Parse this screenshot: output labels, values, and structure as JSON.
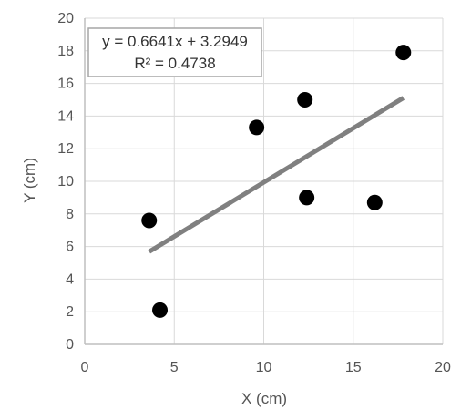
{
  "chart_data": {
    "type": "scatter",
    "title": "",
    "xlabel": "X (cm)",
    "ylabel": "Y (cm)",
    "xlim": [
      0,
      20
    ],
    "ylim": [
      0,
      20
    ],
    "xticks": [
      0,
      5,
      10,
      15,
      20
    ],
    "yticks": [
      0,
      2,
      4,
      6,
      8,
      10,
      12,
      14,
      16,
      18,
      20
    ],
    "grid": true,
    "legend": "none",
    "points": [
      {
        "x": 3.6,
        "y": 7.6
      },
      {
        "x": 4.2,
        "y": 2.1
      },
      {
        "x": 9.6,
        "y": 13.3
      },
      {
        "x": 12.3,
        "y": 15.0
      },
      {
        "x": 12.4,
        "y": 9.0
      },
      {
        "x": 16.2,
        "y": 8.7
      },
      {
        "x": 17.8,
        "y": 17.9
      }
    ],
    "trendline": {
      "slope": 0.6641,
      "intercept": 3.2949,
      "x_range": [
        3.6,
        17.8
      ],
      "equation": "y = 0.6641x + 3.2949",
      "r_squared": "R² = 0.4738"
    },
    "colors": {
      "points": "#000000",
      "trendline": "#808080",
      "grid": "#d9d9d9",
      "axis": "#bfbfbf",
      "text": "#555555"
    }
  }
}
